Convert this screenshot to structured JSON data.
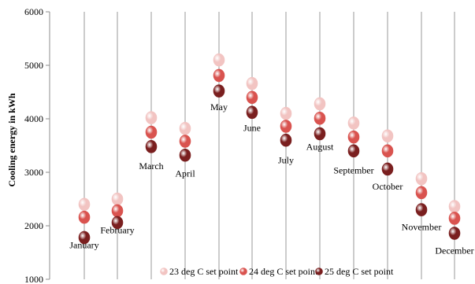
{
  "chart_data": {
    "type": "scatter",
    "categories": [
      "January",
      "February",
      "March",
      "April",
      "May",
      "June",
      "July",
      "August",
      "September",
      "October",
      "November",
      "December"
    ],
    "series": [
      {
        "name": "23 deg C set point",
        "color": "#f2c4c2",
        "values": [
          2400,
          2500,
          4020,
          3820,
          5100,
          4660,
          4100,
          4280,
          3920,
          3680,
          2880,
          2360
        ]
      },
      {
        "name": "24 deg C set point",
        "color": "#d9534f",
        "values": [
          2160,
          2280,
          3750,
          3580,
          4810,
          4400,
          3860,
          4010,
          3660,
          3400,
          2620,
          2140
        ]
      },
      {
        "name": "25 deg C set point",
        "color": "#7a1f1f",
        "values": [
          1780,
          2060,
          3480,
          3320,
          4520,
          4120,
          3600,
          3720,
          3400,
          3060,
          2300,
          1860
        ]
      }
    ],
    "month_label_values": [
      1580,
      1860,
      3060,
      2920,
      4160,
      3770,
      3170,
      3420,
      2980,
      2680,
      1920,
      1480
    ],
    "ylabel": "Cooling energy in kWh",
    "ylim": [
      1000,
      6000
    ],
    "yticks": [
      "1000",
      "2000",
      "3000",
      "4000",
      "5000",
      "6000"
    ],
    "grid": "vertical drop lines per month",
    "legend_position": "bottom-center"
  }
}
